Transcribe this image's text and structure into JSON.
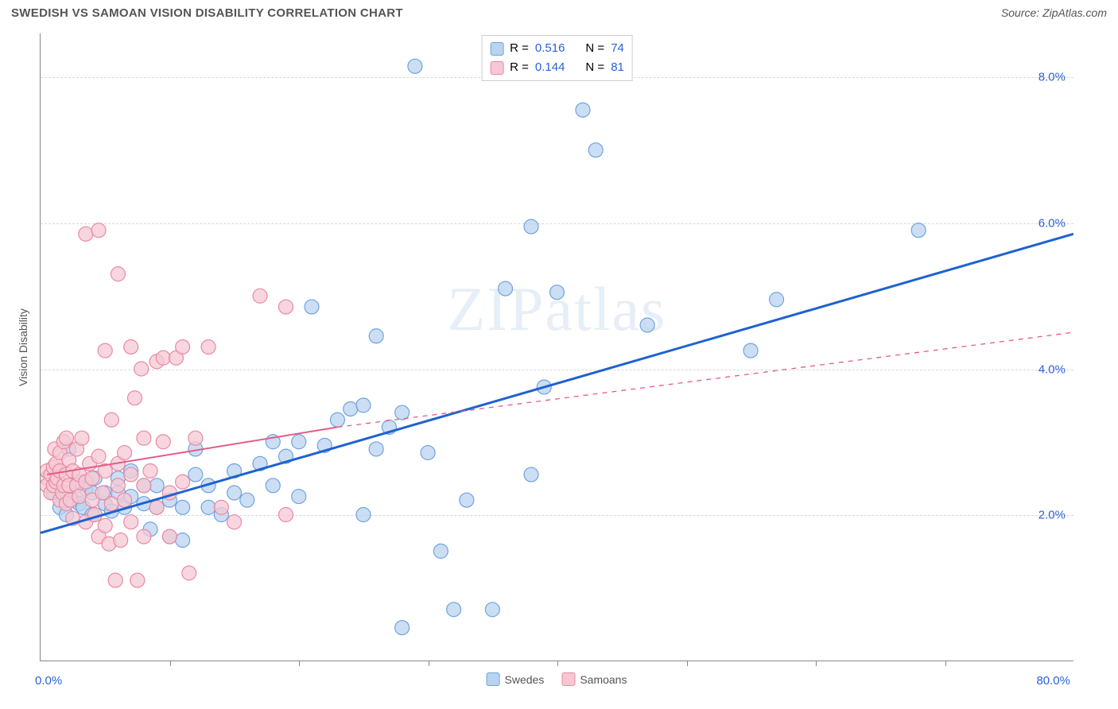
{
  "header": {
    "title": "SWEDISH VS SAMOAN VISION DISABILITY CORRELATION CHART",
    "source": "Source: ZipAtlas.com"
  },
  "chart": {
    "type": "scatter",
    "ylabel": "Vision Disability",
    "xlim": [
      0,
      80
    ],
    "ylim": [
      0,
      8.6
    ],
    "xtick_step": 10,
    "xlabel_min": "0.0%",
    "xlabel_max": "80.0%",
    "yticks": [
      {
        "value": 2.0,
        "label": "2.0%"
      },
      {
        "value": 4.0,
        "label": "4.0%"
      },
      {
        "value": 6.0,
        "label": "6.0%"
      },
      {
        "value": 8.0,
        "label": "8.0%"
      }
    ],
    "grid_color": "#d8d8d8",
    "background_color": "#ffffff",
    "watermark": "ZIPatlas",
    "series": [
      {
        "name": "Swedes",
        "marker_fill": "#b9d3f0",
        "marker_stroke": "#6fa3e0",
        "marker_radius": 9,
        "trend_color": "#1e62d0",
        "trend_width": 3,
        "trend_dash": "none",
        "trend": {
          "x1": 0,
          "y1": 1.75,
          "x2": 80,
          "y2": 5.85
        },
        "stats": {
          "R": "0.516",
          "N": "74"
        },
        "points": [
          [
            1,
            2.3
          ],
          [
            1,
            2.5
          ],
          [
            1.5,
            2.1
          ],
          [
            1.5,
            2.6
          ],
          [
            2,
            2.3
          ],
          [
            2,
            2.0
          ],
          [
            2.2,
            2.9
          ],
          [
            2.5,
            2.2
          ],
          [
            3,
            2.15
          ],
          [
            3,
            2.45
          ],
          [
            3.3,
            2.1
          ],
          [
            3.5,
            2.35
          ],
          [
            4,
            2.0
          ],
          [
            4,
            2.3
          ],
          [
            4.2,
            2.5
          ],
          [
            5,
            2.15
          ],
          [
            5,
            2.3
          ],
          [
            5.5,
            2.05
          ],
          [
            6,
            2.3
          ],
          [
            6,
            2.5
          ],
          [
            6.5,
            2.1
          ],
          [
            7,
            2.25
          ],
          [
            7,
            2.6
          ],
          [
            8,
            2.15
          ],
          [
            8,
            2.4
          ],
          [
            8.5,
            1.8
          ],
          [
            9,
            2.1
          ],
          [
            9,
            2.4
          ],
          [
            10,
            1.7
          ],
          [
            10,
            2.2
          ],
          [
            11,
            2.1
          ],
          [
            11,
            1.65
          ],
          [
            12,
            2.55
          ],
          [
            12,
            2.9
          ],
          [
            13,
            2.1
          ],
          [
            13,
            2.4
          ],
          [
            14,
            2.0
          ],
          [
            15,
            2.6
          ],
          [
            15,
            2.3
          ],
          [
            16,
            2.2
          ],
          [
            17,
            2.7
          ],
          [
            18,
            2.4
          ],
          [
            18,
            3.0
          ],
          [
            19,
            2.8
          ],
          [
            20,
            2.25
          ],
          [
            20,
            3.0
          ],
          [
            21,
            4.85
          ],
          [
            22,
            2.95
          ],
          [
            23,
            3.3
          ],
          [
            24,
            3.45
          ],
          [
            25,
            2.0
          ],
          [
            25,
            3.5
          ],
          [
            26,
            2.9
          ],
          [
            26,
            4.45
          ],
          [
            27,
            3.2
          ],
          [
            28,
            3.4
          ],
          [
            28,
            0.45
          ],
          [
            29,
            8.15
          ],
          [
            30,
            2.85
          ],
          [
            31,
            1.5
          ],
          [
            32,
            0.7
          ],
          [
            33,
            2.2
          ],
          [
            35,
            0.7
          ],
          [
            36,
            5.1
          ],
          [
            38,
            2.55
          ],
          [
            38,
            5.95
          ],
          [
            39,
            3.75
          ],
          [
            40,
            5.05
          ],
          [
            42,
            7.55
          ],
          [
            43,
            7.0
          ],
          [
            47,
            4.6
          ],
          [
            55,
            4.25
          ],
          [
            57,
            4.95
          ],
          [
            68,
            5.9
          ]
        ]
      },
      {
        "name": "Samoans",
        "marker_fill": "#f6c8d4",
        "marker_stroke": "#e88aa3",
        "marker_radius": 9,
        "trend_color": "#e65a87",
        "trend_width": 2,
        "trend": {
          "solid": {
            "x1": 0.5,
            "y1": 2.55,
            "x2": 23,
            "y2": 3.2
          },
          "dashed": {
            "x1": 23,
            "y1": 3.2,
            "x2": 80,
            "y2": 4.5
          }
        },
        "stats": {
          "R": "0.144",
          "N": "81"
        },
        "points": [
          [
            0.5,
            2.5
          ],
          [
            0.5,
            2.6
          ],
          [
            0.5,
            2.4
          ],
          [
            0.8,
            2.55
          ],
          [
            0.8,
            2.3
          ],
          [
            1,
            2.65
          ],
          [
            1,
            2.4
          ],
          [
            1.1,
            2.9
          ],
          [
            1.2,
            2.45
          ],
          [
            1.2,
            2.7
          ],
          [
            1.3,
            2.5
          ],
          [
            1.5,
            2.2
          ],
          [
            1.5,
            2.6
          ],
          [
            1.5,
            2.85
          ],
          [
            1.7,
            2.3
          ],
          [
            1.8,
            3.0
          ],
          [
            1.8,
            2.4
          ],
          [
            2,
            2.15
          ],
          [
            2,
            2.55
          ],
          [
            2,
            3.05
          ],
          [
            2.2,
            2.75
          ],
          [
            2.2,
            2.4
          ],
          [
            2.3,
            2.2
          ],
          [
            2.5,
            2.6
          ],
          [
            2.5,
            1.95
          ],
          [
            2.8,
            2.9
          ],
          [
            2.8,
            2.4
          ],
          [
            3,
            2.55
          ],
          [
            3,
            2.25
          ],
          [
            3.2,
            3.05
          ],
          [
            3.5,
            2.45
          ],
          [
            3.5,
            1.9
          ],
          [
            3.5,
            5.85
          ],
          [
            3.8,
            2.7
          ],
          [
            4,
            2.2
          ],
          [
            4,
            2.5
          ],
          [
            4.2,
            2.0
          ],
          [
            4.5,
            2.8
          ],
          [
            4.5,
            1.7
          ],
          [
            4.5,
            5.9
          ],
          [
            4.8,
            2.3
          ],
          [
            5,
            2.6
          ],
          [
            5,
            1.85
          ],
          [
            5,
            4.25
          ],
          [
            5.3,
            1.6
          ],
          [
            5.5,
            3.3
          ],
          [
            5.5,
            2.15
          ],
          [
            5.8,
            1.1
          ],
          [
            6,
            2.4
          ],
          [
            6,
            2.7
          ],
          [
            6,
            5.3
          ],
          [
            6.2,
            1.65
          ],
          [
            6.5,
            2.85
          ],
          [
            6.5,
            2.2
          ],
          [
            7,
            2.55
          ],
          [
            7,
            1.9
          ],
          [
            7,
            4.3
          ],
          [
            7.3,
            3.6
          ],
          [
            7.5,
            1.1
          ],
          [
            7.8,
            4.0
          ],
          [
            8,
            2.4
          ],
          [
            8,
            3.05
          ],
          [
            8,
            1.7
          ],
          [
            8.5,
            2.6
          ],
          [
            9,
            4.1
          ],
          [
            9,
            2.1
          ],
          [
            9.5,
            3.0
          ],
          [
            9.5,
            4.15
          ],
          [
            10,
            2.3
          ],
          [
            10,
            1.7
          ],
          [
            10.5,
            4.15
          ],
          [
            11,
            4.3
          ],
          [
            11,
            2.45
          ],
          [
            11.5,
            1.2
          ],
          [
            12,
            3.05
          ],
          [
            13,
            4.3
          ],
          [
            14,
            2.1
          ],
          [
            15,
            1.9
          ],
          [
            17,
            5.0
          ],
          [
            19,
            2.0
          ],
          [
            19,
            4.85
          ]
        ]
      }
    ],
    "bottom_legend": [
      {
        "label": "Swedes",
        "fill": "#b9d3f0",
        "stroke": "#6fa3e0"
      },
      {
        "label": "Samoans",
        "fill": "#f6c8d4",
        "stroke": "#e88aa3"
      }
    ]
  }
}
